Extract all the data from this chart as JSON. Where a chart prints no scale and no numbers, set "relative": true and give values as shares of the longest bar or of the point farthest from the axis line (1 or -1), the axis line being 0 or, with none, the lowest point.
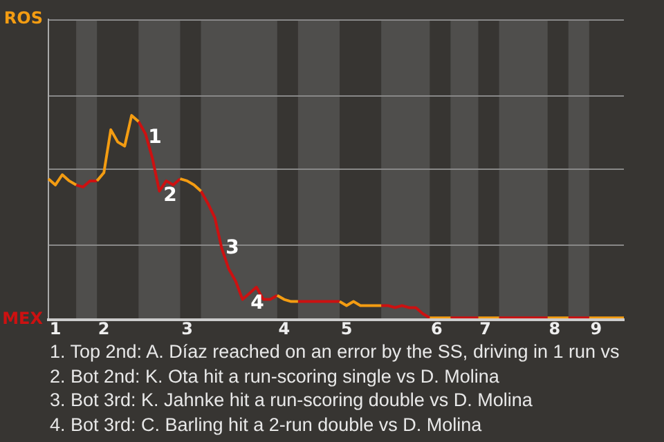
{
  "chart_data": {
    "type": "line",
    "relative": true,
    "categories": [
      null,
      "1",
      null,
      null,
      null,
      null,
      null,
      null,
      "2",
      null,
      null,
      null,
      null,
      null,
      null,
      null,
      null,
      null,
      null,
      null,
      "3",
      null,
      null,
      null,
      null,
      null,
      null,
      null,
      null,
      null,
      null,
      null,
      null,
      null,
      "4",
      null,
      null,
      null,
      null,
      null,
      null,
      null,
      null,
      "5",
      null,
      null,
      null,
      null,
      null,
      null,
      null,
      null,
      null,
      null,
      null,
      null,
      "6",
      null,
      null,
      null,
      null,
      null,
      null,
      "7",
      null,
      null,
      null,
      null,
      null,
      null,
      null,
      null,
      null,
      "8",
      null,
      null,
      null,
      null,
      null,
      "9",
      null,
      null,
      null,
      null
    ],
    "ref_lines": [
      {
        "axis": "y",
        "value": 0.37,
        "color": "#888888"
      },
      {
        "axis": "y",
        "value": 0.74,
        "color": "#888888"
      },
      {
        "axis": "y",
        "value": 1.1,
        "color": "#888888"
      },
      {
        "axis": "y",
        "value": 1.47,
        "color": "#888888"
      }
    ],
    "marker": "none",
    "line_style": "solid",
    "series": [
      {
        "name": "ROS",
        "color": "#f39c12",
        "values": [
          0.69,
          0.66,
          0.71,
          0.68,
          0.66,
          null,
          null,
          0.68,
          0.72,
          0.93,
          0.87,
          0.85,
          1,
          0.97,
          null,
          null,
          null,
          null,
          null,
          0.69,
          0.68,
          0.66,
          0.63,
          null,
          null,
          null,
          null,
          null,
          null,
          null,
          null,
          null,
          null,
          0.12,
          0.1,
          0.09,
          0.09,
          null,
          null,
          null,
          null,
          null,
          0.09,
          0.07,
          0.09,
          0.07,
          0.07,
          0.07,
          0.07,
          null,
          null,
          null,
          null,
          null,
          null,
          0.01,
          0.01,
          0.01,
          0.01,
          null,
          null,
          null,
          0.01,
          0.01,
          0.01,
          0.01,
          null,
          null,
          null,
          null,
          null,
          null,
          0.01,
          0.01,
          0.01,
          0.01,
          null,
          null,
          0.01,
          0.01,
          0.01,
          0.01,
          0.01,
          0.01
        ]
      },
      {
        "name": "MEX",
        "color": "#cc1111",
        "values": [
          null,
          null,
          null,
          null,
          0.66,
          0.65,
          0.68,
          0.68,
          null,
          null,
          null,
          null,
          null,
          0.97,
          0.91,
          0.79,
          0.63,
          0.68,
          0.66,
          0.69,
          null,
          null,
          0.63,
          0.57,
          0.5,
          0.35,
          0.25,
          0.19,
          0.1,
          0.13,
          0.16,
          0.1,
          0.1,
          0.12,
          null,
          null,
          0.09,
          0.09,
          0.09,
          0.09,
          0.09,
          0.09,
          0.09,
          null,
          null,
          null,
          null,
          null,
          0.07,
          0.07,
          0.06,
          0.07,
          0.06,
          0.06,
          0.03,
          0.01,
          null,
          null,
          0.01,
          0.01,
          0.01,
          0.01,
          0.01,
          null,
          null,
          0.01,
          0.01,
          0.01,
          0.01,
          0.01,
          0.01,
          0.01,
          0.01,
          null,
          null,
          0.01,
          0.01,
          0.01,
          0.01,
          null,
          null,
          null,
          null,
          null
        ]
      }
    ],
    "annotations": [
      "1",
      "2",
      "3",
      "4",
      "1. Top 2nd: A. Díaz reached on an error by the SS, driving in 1 run vs",
      "2. Bot 2nd: K. Ota hit a run-scoring single vs D. Molina",
      "3. Bot 3rd: K. Jahnke hit a run-scoring double vs D. Molina",
      "4. Bot 3rd: C. Barling hit a 2-run double vs D. Molina"
    ]
  }
}
